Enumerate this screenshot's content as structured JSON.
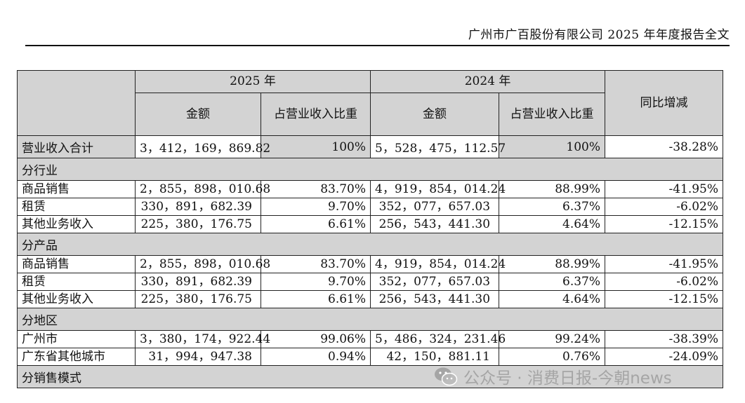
{
  "header": {
    "title": "广州市广百股份有限公司 2025 年年度报告全文"
  },
  "table": {
    "year_current": "2025 年",
    "year_previous": "2024 年",
    "col_amount": "金额",
    "col_ratio": "占营业收入比重",
    "col_yoy": "同比增减",
    "total": {
      "label": "营业收入合计",
      "amt_2025": "3，412，169，869.82",
      "pct_2025": "100%",
      "amt_2024": "5，528，475，112.57",
      "pct_2024": "100%",
      "yoy": "-38.28%"
    },
    "sections": [
      {
        "title": "分行业",
        "rows": [
          {
            "label": "商品销售",
            "amt_2025": "2，855，898，010.68",
            "pct_2025": "83.70%",
            "amt_2024": "4，919，854，014.24",
            "pct_2024": "88.99%",
            "yoy": "-41.95%"
          },
          {
            "label": "租赁",
            "amt_2025": "330，891，682.39",
            "pct_2025": "9.70%",
            "amt_2024": "352，077，657.03",
            "pct_2024": "6.37%",
            "yoy": "-6.02%"
          },
          {
            "label": "其他业务收入",
            "amt_2025": "225，380，176.75",
            "pct_2025": "6.61%",
            "amt_2024": "256，543，441.30",
            "pct_2024": "4.64%",
            "yoy": "-12.15%"
          }
        ]
      },
      {
        "title": "分产品",
        "rows": [
          {
            "label": "商品销售",
            "amt_2025": "2，855，898，010.68",
            "pct_2025": "83.70%",
            "amt_2024": "4，919，854，014.24",
            "pct_2024": "88.99%",
            "yoy": "-41.95%"
          },
          {
            "label": "租赁",
            "amt_2025": "330，891，682.39",
            "pct_2025": "9.70%",
            "amt_2024": "352，077，657.03",
            "pct_2024": "6.37%",
            "yoy": "-6.02%"
          },
          {
            "label": "其他业务收入",
            "amt_2025": "225，380，176.75",
            "pct_2025": "6.61%",
            "amt_2024": "256，543，441.30",
            "pct_2024": "4.64%",
            "yoy": "-12.15%"
          }
        ]
      },
      {
        "title": "分地区",
        "rows": [
          {
            "label": "广州市",
            "amt_2025": "3，380，174，922.44",
            "pct_2025": "99.06%",
            "amt_2024": "5，486，324，231.46",
            "pct_2024": "99.24%",
            "yoy": "-38.39%"
          },
          {
            "label": "广东省其他城市",
            "amt_2025": "31，994，947.38",
            "pct_2025": "0.94%",
            "amt_2024": "42，150，881.11",
            "pct_2024": "0.76%",
            "yoy": "-24.09%"
          }
        ]
      },
      {
        "title": "分销售模式",
        "rows": []
      }
    ]
  },
  "watermark": {
    "icon": "wechat-icon",
    "text": "公众号 · 消费日报-今朝news"
  }
}
